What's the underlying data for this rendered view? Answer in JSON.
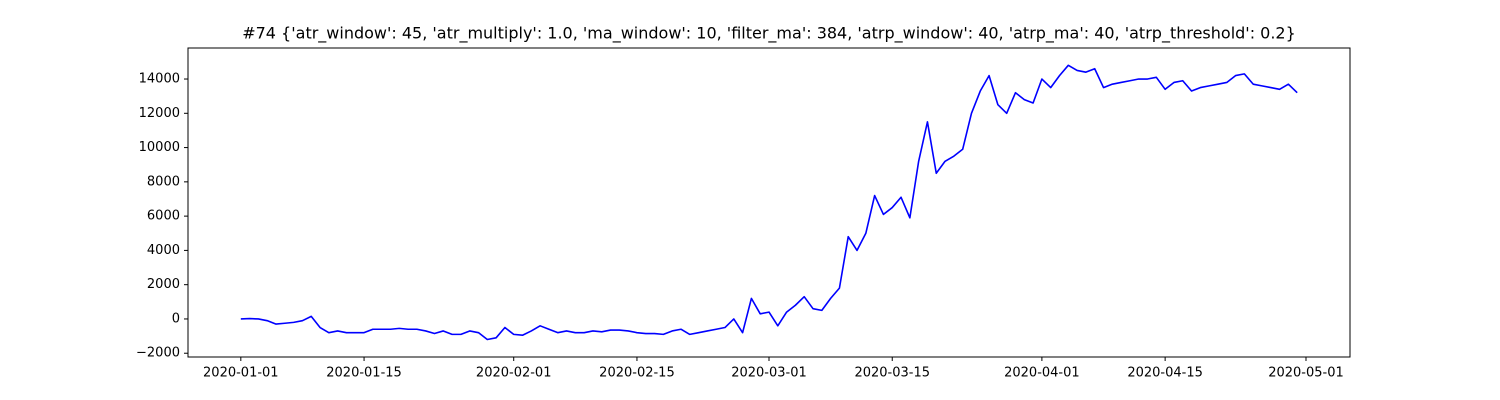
{
  "chart_data": {
    "type": "line",
    "title": "#74 {'atr_window': 45, 'atr_multiply': 1.0, 'ma_window': 10, 'filter_ma': 384, 'atrp_window': 40, 'atrp_ma': 40, 'atrp_threshold': 0.2}",
    "x": [
      "2020-01-01",
      "2020-01-02",
      "2020-01-03",
      "2020-01-04",
      "2020-01-05",
      "2020-01-06",
      "2020-01-07",
      "2020-01-08",
      "2020-01-09",
      "2020-01-10",
      "2020-01-11",
      "2020-01-12",
      "2020-01-13",
      "2020-01-14",
      "2020-01-15",
      "2020-01-16",
      "2020-01-17",
      "2020-01-18",
      "2020-01-19",
      "2020-01-20",
      "2020-01-21",
      "2020-01-22",
      "2020-01-23",
      "2020-01-24",
      "2020-01-25",
      "2020-01-26",
      "2020-01-27",
      "2020-01-28",
      "2020-01-29",
      "2020-01-30",
      "2020-01-31",
      "2020-02-01",
      "2020-02-02",
      "2020-02-03",
      "2020-02-04",
      "2020-02-05",
      "2020-02-06",
      "2020-02-07",
      "2020-02-08",
      "2020-02-09",
      "2020-02-10",
      "2020-02-11",
      "2020-02-12",
      "2020-02-13",
      "2020-02-14",
      "2020-02-15",
      "2020-02-16",
      "2020-02-17",
      "2020-02-18",
      "2020-02-19",
      "2020-02-20",
      "2020-02-21",
      "2020-02-22",
      "2020-02-23",
      "2020-02-24",
      "2020-02-25",
      "2020-02-26",
      "2020-02-27",
      "2020-02-28",
      "2020-02-29",
      "2020-03-01",
      "2020-03-02",
      "2020-03-03",
      "2020-03-04",
      "2020-03-05",
      "2020-03-06",
      "2020-03-07",
      "2020-03-08",
      "2020-03-09",
      "2020-03-10",
      "2020-03-11",
      "2020-03-12",
      "2020-03-13",
      "2020-03-14",
      "2020-03-15",
      "2020-03-16",
      "2020-03-17",
      "2020-03-18",
      "2020-03-19",
      "2020-03-20",
      "2020-03-21",
      "2020-03-22",
      "2020-03-23",
      "2020-03-24",
      "2020-03-25",
      "2020-03-26",
      "2020-03-27",
      "2020-03-28",
      "2020-03-29",
      "2020-03-30",
      "2020-03-31",
      "2020-04-01",
      "2020-04-02",
      "2020-04-03",
      "2020-04-04",
      "2020-04-05",
      "2020-04-06",
      "2020-04-07",
      "2020-04-08",
      "2020-04-09",
      "2020-04-10",
      "2020-04-11",
      "2020-04-12",
      "2020-04-13",
      "2020-04-14",
      "2020-04-15",
      "2020-04-16",
      "2020-04-17",
      "2020-04-18",
      "2020-04-19",
      "2020-04-20",
      "2020-04-21",
      "2020-04-22",
      "2020-04-23",
      "2020-04-24",
      "2020-04-25",
      "2020-04-26",
      "2020-04-27",
      "2020-04-28",
      "2020-04-29",
      "2020-04-30"
    ],
    "values": [
      0,
      20,
      0,
      -100,
      -300,
      -250,
      -200,
      -100,
      150,
      -500,
      -800,
      -700,
      -800,
      -800,
      -800,
      -600,
      -600,
      -600,
      -550,
      -600,
      -600,
      -700,
      -850,
      -700,
      -900,
      -900,
      -700,
      -800,
      -1200,
      -1100,
      -500,
      -900,
      -950,
      -700,
      -400,
      -600,
      -800,
      -700,
      -800,
      -800,
      -700,
      -750,
      -650,
      -650,
      -700,
      -800,
      -850,
      -850,
      -900,
      -700,
      -600,
      -900,
      -800,
      -700,
      -600,
      -500,
      0,
      -800,
      1200,
      300,
      400,
      -400,
      400,
      800,
      1300,
      600,
      500,
      1200,
      1800,
      4800,
      4000,
      5000,
      7200,
      6100,
      6500,
      7100,
      5900,
      9200,
      11500,
      8500,
      9200,
      9500,
      9900,
      12000,
      13300,
      14200,
      12500,
      12000,
      13200,
      12800,
      12600,
      14000,
      13500,
      14200,
      14800,
      14500,
      14400,
      14600,
      13500,
      13700,
      13800,
      13900,
      14000,
      14000,
      14100,
      13400,
      13800,
      13900,
      13300,
      13500,
      13600,
      13700,
      13800,
      14200,
      14300,
      13700,
      13600,
      13500,
      13400,
      13700,
      13200
    ],
    "color": "#0000ff",
    "xlim": [
      "2019-12-26",
      "2020-05-06"
    ],
    "xticks": [
      "2020-01-01",
      "2020-01-15",
      "2020-02-01",
      "2020-02-15",
      "2020-03-01",
      "2020-03-15",
      "2020-04-01",
      "2020-04-15",
      "2020-05-01"
    ],
    "ylim": [
      -2220,
      15810
    ],
    "yticks": [
      {
        "value": -2000,
        "label": "−2000"
      },
      0,
      2000,
      4000,
      6000,
      8000,
      10000,
      12000,
      14000
    ]
  }
}
